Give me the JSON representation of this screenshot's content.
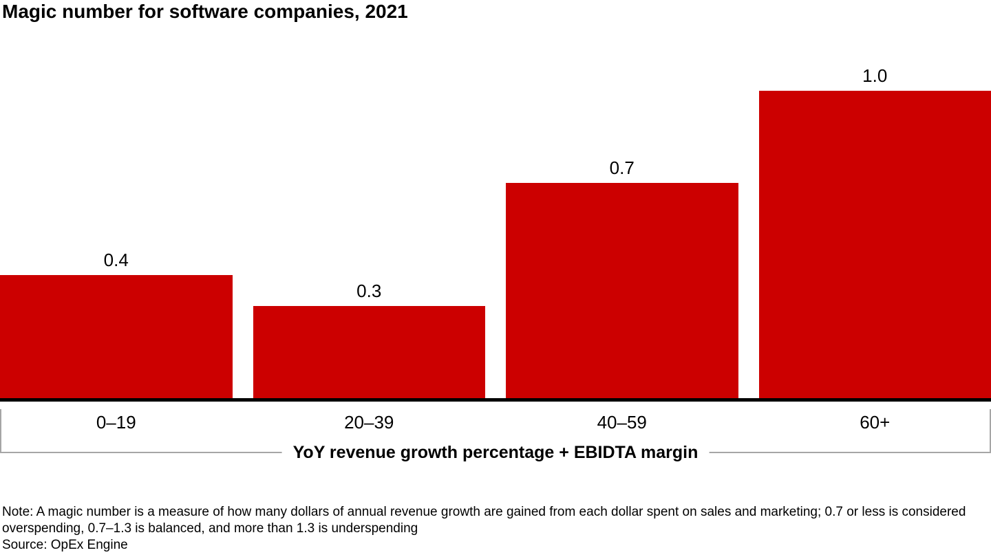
{
  "title": "Magic number for software companies, 2021",
  "chart_data": {
    "type": "bar",
    "title": "Magic number for software companies, 2021",
    "categories": [
      "0–19",
      "20–39",
      "40–59",
      "60+"
    ],
    "values": [
      0.4,
      0.3,
      0.7,
      1.0
    ],
    "value_labels": [
      "0.4",
      "0.3",
      "0.7",
      "1.0"
    ],
    "xlabel": "YoY revenue growth percentage + EBIDTA margin",
    "ylabel": "",
    "ylim": [
      0,
      1.0
    ],
    "bar_color": "#cc0000",
    "axis_color": "#000000",
    "bracket_color": "#a6a6a6",
    "grid": false,
    "legend": false
  },
  "footer": {
    "note": "Note: A magic number is a measure of how many dollars of annual revenue growth are gained from each dollar spent on sales and marketing; 0.7 or less is considered overspending, 0.7–1.3 is balanced, and more than 1.3 is underspending",
    "source": "Source: OpEx Engine"
  }
}
